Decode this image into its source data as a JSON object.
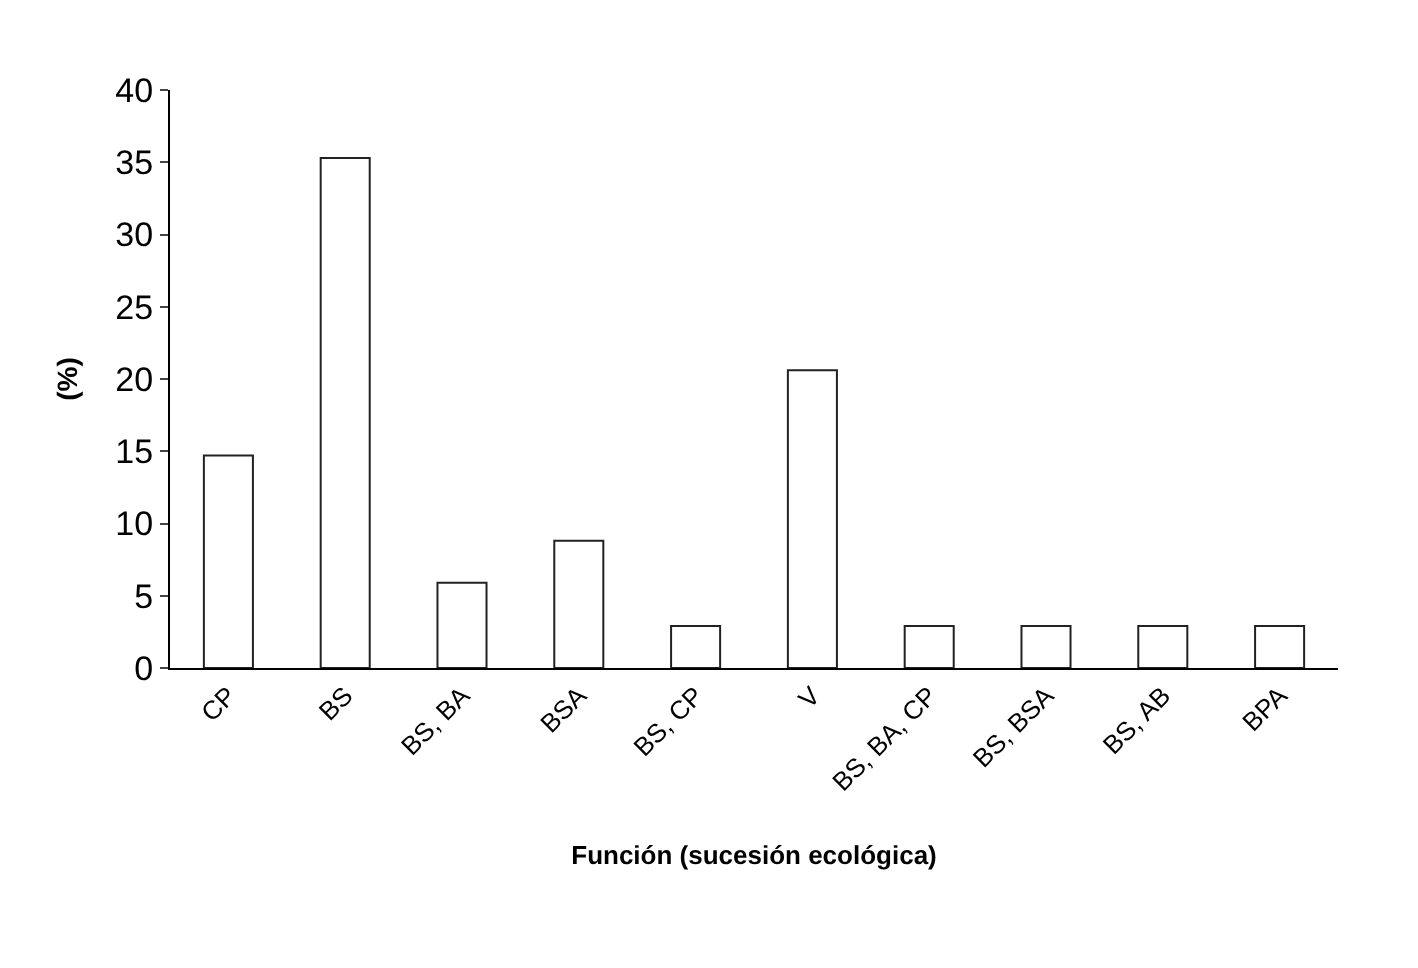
{
  "chart_data": {
    "type": "bar",
    "xlabel": "Función (sucesión ecológica)",
    "ylabel": "(%)",
    "categories": [
      "CP",
      "BS",
      "BS, BA",
      "BSA",
      "BS, CP",
      "V",
      "BS, BA, CP",
      "BS, BSA",
      "BS, AB",
      "BPA"
    ],
    "series": [
      {
        "color": "#ffffff",
        "values": [
          14.7,
          35.3,
          5.9,
          8.8,
          2.9,
          20.6,
          2.9,
          2.9,
          2.9,
          2.9
        ]
      }
    ],
    "ylim": [
      0,
      40
    ],
    "yticks": [
      0,
      5,
      10,
      15,
      20,
      25,
      30,
      35,
      40
    ],
    "legend": false
  }
}
